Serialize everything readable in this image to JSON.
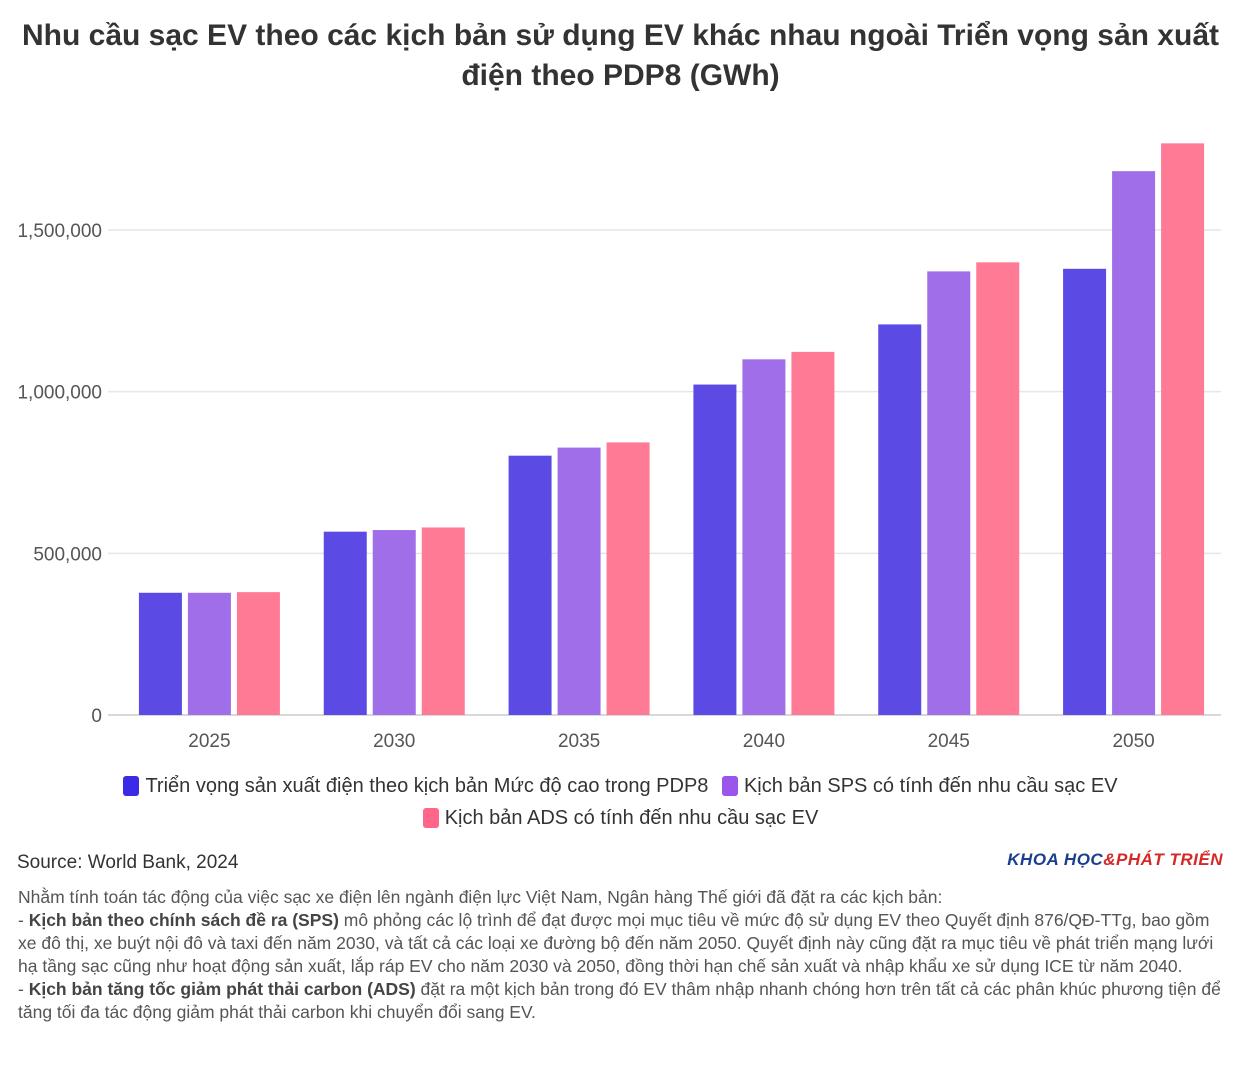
{
  "title": "Nhu cầu sạc EV theo các kịch bản sử dụng EV khác nhau ngoài Triển vọng sản xuất điện theo PDP8 (GWh)",
  "source": "Source: World Bank, 2024",
  "brand": {
    "part1": "KHOA HỌC",
    "amp": "&",
    "part2": "PHÁT TRIỂN"
  },
  "colors": {
    "series1": "#5c4ae4",
    "series2": "#a06ee8",
    "series3": "#ff7a95",
    "grid": "#e6e6e6",
    "axis": "#cccccc"
  },
  "notes": {
    "intro": "Nhằm tính toán tác động của việc sạc xe điện lên ngành điện lực Việt Nam, Ngân hàng Thế giới đã đặt ra các kịch bản:",
    "sps_prefix": "- ",
    "sps_bold": "Kịch bản theo chính sách đề ra (SPS)",
    "sps_text": " mô phỏng các lộ trình để đạt được mọi mục tiêu về mức độ sử dụng EV theo Quyết định 876/QĐ-TTg, bao gồm xe đô thị, xe buýt nội đô và taxi đến năm 2030, và tất cả các loại xe đường bộ đến năm 2050. Quyết định này cũng đặt ra mục tiêu về phát triển mạng lưới hạ tầng sạc cũng như hoạt động sản xuất, lắp ráp EV cho năm 2030 và 2050, đồng thời hạn chế sản xuất và nhập khẩu xe sử dụng ICE từ năm 2040.",
    "ads_prefix": "- ",
    "ads_bold": "Kịch bản tăng tốc giảm phát thải carbon (ADS)",
    "ads_text": " đặt ra một kịch bản trong đó EV thâm nhập nhanh chóng hơn trên tất cả các phân khúc phương tiện để tăng tối đa tác động giảm phát thải carbon khi chuyển đổi sang EV."
  },
  "chart_data": {
    "type": "bar",
    "title": "Nhu cầu sạc EV theo các kịch bản sử dụng EV khác nhau ngoài Triển vọng sản xuất điện theo PDP8 (GWh)",
    "categories": [
      "2025",
      "2030",
      "2035",
      "2040",
      "2045",
      "2050"
    ],
    "series": [
      {
        "name": "Triển vọng sản xuất điện theo kịch bản Mức độ cao trong PDP8",
        "values": [
          378000,
          567000,
          802000,
          1022000,
          1208000,
          1380000
        ]
      },
      {
        "name": "Kịch bản SPS có tính đến nhu cầu sạc EV",
        "values": [
          378000,
          572000,
          827000,
          1100000,
          1372000,
          1682000
        ]
      },
      {
        "name": "Kịch bản ADS có tính đến nhu cầu sạc EV",
        "values": [
          380000,
          580000,
          843000,
          1123000,
          1400000,
          1768000
        ]
      }
    ],
    "yticks": [
      0,
      500000,
      1000000,
      1500000
    ],
    "ytick_labels": [
      "0",
      "500,000",
      "1,000,000",
      "1,500,000"
    ],
    "ylim": [
      0,
      1800000
    ],
    "grid": true,
    "legend_position": "bottom"
  }
}
